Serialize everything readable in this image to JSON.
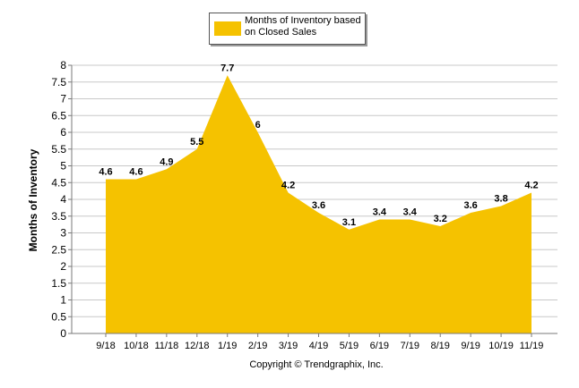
{
  "chart_data": {
    "type": "area",
    "categories": [
      "9/18",
      "10/18",
      "11/18",
      "12/18",
      "1/19",
      "2/19",
      "3/19",
      "4/19",
      "5/19",
      "6/19",
      "7/19",
      "8/19",
      "9/19",
      "10/19",
      "11/19"
    ],
    "series": [
      {
        "name": "Months of Inventory based on Closed Sales",
        "values": [
          4.6,
          4.6,
          4.9,
          5.5,
          7.7,
          6,
          4.2,
          3.6,
          3.1,
          3.4,
          3.4,
          3.2,
          3.6,
          3.8,
          4.2
        ]
      }
    ],
    "data_labels": [
      "4.6",
      "4.6",
      "4.9",
      "5.5",
      "7.7",
      "6",
      "4.2",
      "3.6",
      "3.1",
      "3.4",
      "3.4",
      "3.2",
      "3.6",
      "3.8",
      "4.2"
    ],
    "ylabel": "Months of Inventory",
    "ylim": [
      0,
      8
    ],
    "yticks": [
      0,
      0.5,
      1,
      1.5,
      2,
      2.5,
      3,
      3.5,
      4,
      4.5,
      5,
      5.5,
      6,
      6.5,
      7,
      7.5,
      8
    ],
    "ytick_labels": [
      "0",
      "0.5",
      "1",
      "1.5",
      "2",
      "2.5",
      "3",
      "3.5",
      "4",
      "4.5",
      "5",
      "5.5",
      "6",
      "6.5",
      "7",
      "7.5",
      "8"
    ],
    "grid": true,
    "legend": "top-center",
    "fill_color": "#F5C200"
  },
  "legend": {
    "label": "Months of Inventory based on Closed Sales"
  },
  "footer": {
    "copyright": "Copyright © Trendgraphix, Inc."
  }
}
